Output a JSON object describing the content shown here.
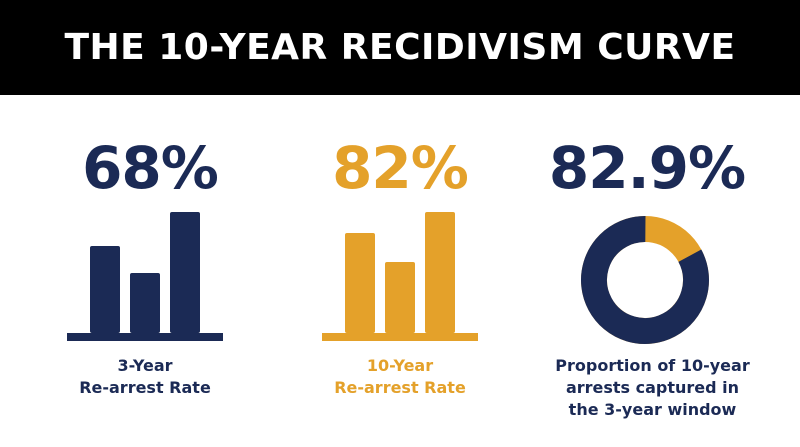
{
  "title": "THE 10-YEAR RECIDIVISM CURVE",
  "colors": {
    "navy": "#1b2a55",
    "gold": "#e4a12a",
    "banner_bg": "#000000",
    "banner_text": "#ffffff"
  },
  "panels": [
    {
      "value": "68%",
      "label_line1": "3-Year",
      "label_line2": "Re-arrest Rate",
      "icon": "bar-chart-icon",
      "color": "#1b2a55"
    },
    {
      "value": "82%",
      "label_line1": "10-Year",
      "label_line2": "Re-arrest Rate",
      "icon": "bar-chart-icon",
      "color": "#e4a12a"
    },
    {
      "value": "82.9%",
      "label_line1": "Proportion of 10-year",
      "label_line2": "arrests captured in",
      "label_line3": "the 3-year window",
      "icon": "donut-chart-icon",
      "color": "#1b2a55",
      "accent_color": "#e4a12a",
      "donut_fraction": 0.829
    }
  ]
}
